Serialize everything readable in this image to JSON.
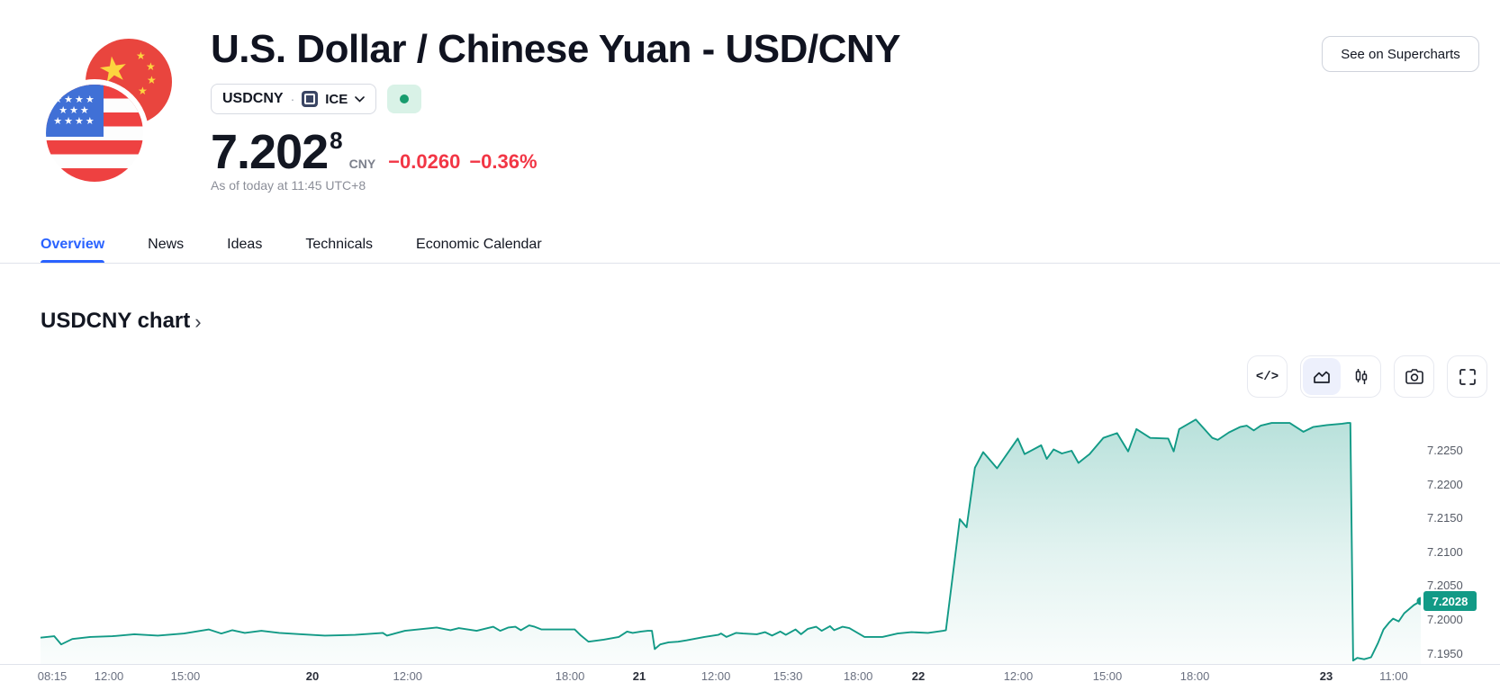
{
  "header": {
    "title": "U.S. Dollar / Chinese Yuan - USD/CNY",
    "symbol_button": {
      "symbol": "USDCNY",
      "separator": "·",
      "exchange": "ICE"
    },
    "market_status": "open",
    "price": {
      "value": "7.202",
      "superscript": "8",
      "currency": "CNY",
      "change": "−0.0260",
      "change_percent": "−0.36%"
    },
    "as_of": "As of today at 11:45 UTC+8",
    "supercharts_button": "See on Supercharts"
  },
  "tabs": {
    "items": [
      {
        "label": "Overview",
        "active": true
      },
      {
        "label": "News",
        "active": false
      },
      {
        "label": "Ideas",
        "active": false
      },
      {
        "label": "Technicals",
        "active": false
      },
      {
        "label": "Economic Calendar",
        "active": false
      }
    ]
  },
  "section": {
    "heading": "USDCNY chart",
    "chevron": "›"
  },
  "toolbar": {
    "embed_glyph": "</>",
    "buttons": [
      "embed-code",
      "area-chart-style",
      "candles-style",
      "snapshot-camera",
      "fullscreen"
    ]
  },
  "colors": {
    "accent_blue": "#2962ff",
    "down_red": "#f23645",
    "up_teal": "#0d9780",
    "text_dark": "#131722",
    "text_gray": "#8b8e98",
    "border_light": "#e0e3eb",
    "status_open_green": "#189c6e"
  },
  "chart_data": {
    "type": "area",
    "symbol": "USDCNY",
    "title": "USDCNY chart",
    "line_color": "#129a86",
    "fill_color": "#129a86",
    "last_price": 7.2028,
    "last_price_label": "7.2028",
    "ylim": [
      7.1935,
      7.2335
    ],
    "grid": false,
    "y_ticks": [
      "7.2250",
      "7.2200",
      "7.2150",
      "7.2100",
      "7.2050",
      "7.2000",
      "7.1950"
    ],
    "y_tick_values": [
      7.225,
      7.22,
      7.215,
      7.21,
      7.205,
      7.2,
      7.195
    ],
    "x_ticks": [
      {
        "label": "08:15",
        "pos": 0.0085,
        "day": false
      },
      {
        "label": "12:00",
        "pos": 0.0496,
        "day": false
      },
      {
        "label": "15:00",
        "pos": 0.105,
        "day": false
      },
      {
        "label": "20",
        "pos": 0.197,
        "day": true
      },
      {
        "label": "12:00",
        "pos": 0.266,
        "day": false
      },
      {
        "label": "18:00",
        "pos": 0.3836,
        "day": false
      },
      {
        "label": "21",
        "pos": 0.4338,
        "day": true
      },
      {
        "label": "12:00",
        "pos": 0.4893,
        "day": false
      },
      {
        "label": "15:30",
        "pos": 0.5415,
        "day": false
      },
      {
        "label": "18:00",
        "pos": 0.5924,
        "day": false
      },
      {
        "label": "22",
        "pos": 0.636,
        "day": true
      },
      {
        "label": "12:00",
        "pos": 0.7084,
        "day": false
      },
      {
        "label": "15:00",
        "pos": 0.773,
        "day": false
      },
      {
        "label": "18:00",
        "pos": 0.8363,
        "day": false
      },
      {
        "label": "23",
        "pos": 0.9315,
        "day": true
      },
      {
        "label": "11:00",
        "pos": 0.9804,
        "day": false
      }
    ],
    "points": [
      [
        0.0,
        7.1974
      ],
      [
        0.01,
        7.1976
      ],
      [
        0.015,
        7.1964
      ],
      [
        0.023,
        7.1972
      ],
      [
        0.036,
        7.1975
      ],
      [
        0.052,
        7.1976
      ],
      [
        0.068,
        7.1979
      ],
      [
        0.085,
        7.1977
      ],
      [
        0.104,
        7.198
      ],
      [
        0.122,
        7.1986
      ],
      [
        0.131,
        7.198
      ],
      [
        0.139,
        7.1985
      ],
      [
        0.148,
        7.1981
      ],
      [
        0.16,
        7.1984
      ],
      [
        0.173,
        7.1981
      ],
      [
        0.189,
        7.1979
      ],
      [
        0.206,
        7.1977
      ],
      [
        0.228,
        7.1978
      ],
      [
        0.248,
        7.1981
      ],
      [
        0.251,
        7.1977
      ],
      [
        0.264,
        7.1984
      ],
      [
        0.287,
        7.1989
      ],
      [
        0.297,
        7.1985
      ],
      [
        0.303,
        7.1988
      ],
      [
        0.316,
        7.1984
      ],
      [
        0.328,
        7.199
      ],
      [
        0.333,
        7.1984
      ],
      [
        0.339,
        7.1989
      ],
      [
        0.344,
        7.199
      ],
      [
        0.348,
        7.1985
      ],
      [
        0.354,
        7.1992
      ],
      [
        0.358,
        7.199
      ],
      [
        0.363,
        7.1986
      ],
      [
        0.372,
        7.1986
      ],
      [
        0.387,
        7.1986
      ],
      [
        0.391,
        7.1978
      ],
      [
        0.397,
        7.1968
      ],
      [
        0.408,
        7.1971
      ],
      [
        0.419,
        7.1975
      ],
      [
        0.425,
        7.1983
      ],
      [
        0.429,
        7.1981
      ],
      [
        0.435,
        7.1983
      ],
      [
        0.44,
        7.1984
      ],
      [
        0.443,
        7.1984
      ],
      [
        0.445,
        7.1957
      ],
      [
        0.449,
        7.1964
      ],
      [
        0.455,
        7.1967
      ],
      [
        0.462,
        7.1968
      ],
      [
        0.468,
        7.197
      ],
      [
        0.481,
        7.1975
      ],
      [
        0.491,
        7.1978
      ],
      [
        0.493,
        7.198
      ],
      [
        0.497,
        7.1975
      ],
      [
        0.504,
        7.1981
      ],
      [
        0.509,
        7.198
      ],
      [
        0.519,
        7.1979
      ],
      [
        0.525,
        7.1982
      ],
      [
        0.53,
        7.1977
      ],
      [
        0.536,
        7.1983
      ],
      [
        0.54,
        7.1978
      ],
      [
        0.547,
        7.1986
      ],
      [
        0.551,
        7.1979
      ],
      [
        0.556,
        7.1987
      ],
      [
        0.562,
        7.199
      ],
      [
        0.566,
        7.1984
      ],
      [
        0.572,
        7.1991
      ],
      [
        0.575,
        7.1985
      ],
      [
        0.581,
        7.199
      ],
      [
        0.586,
        7.1988
      ],
      [
        0.597,
        7.1975
      ],
      [
        0.61,
        7.1975
      ],
      [
        0.621,
        7.198
      ],
      [
        0.631,
        7.1982
      ],
      [
        0.643,
        7.1981
      ],
      [
        0.654,
        7.1984
      ],
      [
        0.656,
        7.1985
      ],
      [
        0.666,
        7.2149
      ],
      [
        0.671,
        7.2137
      ],
      [
        0.677,
        7.2225
      ],
      [
        0.683,
        7.2248
      ],
      [
        0.693,
        7.2224
      ],
      [
        0.708,
        7.2268
      ],
      [
        0.713,
        7.2245
      ],
      [
        0.725,
        7.2258
      ],
      [
        0.729,
        7.2238
      ],
      [
        0.734,
        7.2252
      ],
      [
        0.74,
        7.2246
      ],
      [
        0.747,
        7.225
      ],
      [
        0.752,
        7.2232
      ],
      [
        0.76,
        7.2245
      ],
      [
        0.77,
        7.2269
      ],
      [
        0.78,
        7.2276
      ],
      [
        0.788,
        7.2249
      ],
      [
        0.794,
        7.2282
      ],
      [
        0.804,
        7.2269
      ],
      [
        0.817,
        7.2268
      ],
      [
        0.821,
        7.2249
      ],
      [
        0.825,
        7.2282
      ],
      [
        0.837,
        7.2296
      ],
      [
        0.849,
        7.2269
      ],
      [
        0.853,
        7.2266
      ],
      [
        0.861,
        7.2277
      ],
      [
        0.869,
        7.2285
      ],
      [
        0.874,
        7.2287
      ],
      [
        0.879,
        7.228
      ],
      [
        0.884,
        7.2287
      ],
      [
        0.892,
        7.2291
      ],
      [
        0.905,
        7.2291
      ],
      [
        0.915,
        7.2278
      ],
      [
        0.922,
        7.2285
      ],
      [
        0.932,
        7.2288
      ],
      [
        0.943,
        7.229
      ],
      [
        0.947,
        7.2291
      ],
      [
        0.949,
        7.2291
      ],
      [
        0.951,
        7.194
      ],
      [
        0.954,
        7.1944
      ],
      [
        0.959,
        7.1942
      ],
      [
        0.964,
        7.1945
      ],
      [
        0.969,
        7.1966
      ],
      [
        0.973,
        7.1986
      ],
      [
        0.977,
        7.1996
      ],
      [
        0.98,
        7.2002
      ],
      [
        0.984,
        7.1998
      ],
      [
        0.988,
        7.201
      ],
      [
        0.995,
        7.2022
      ],
      [
        1.0,
        7.2028
      ]
    ]
  }
}
